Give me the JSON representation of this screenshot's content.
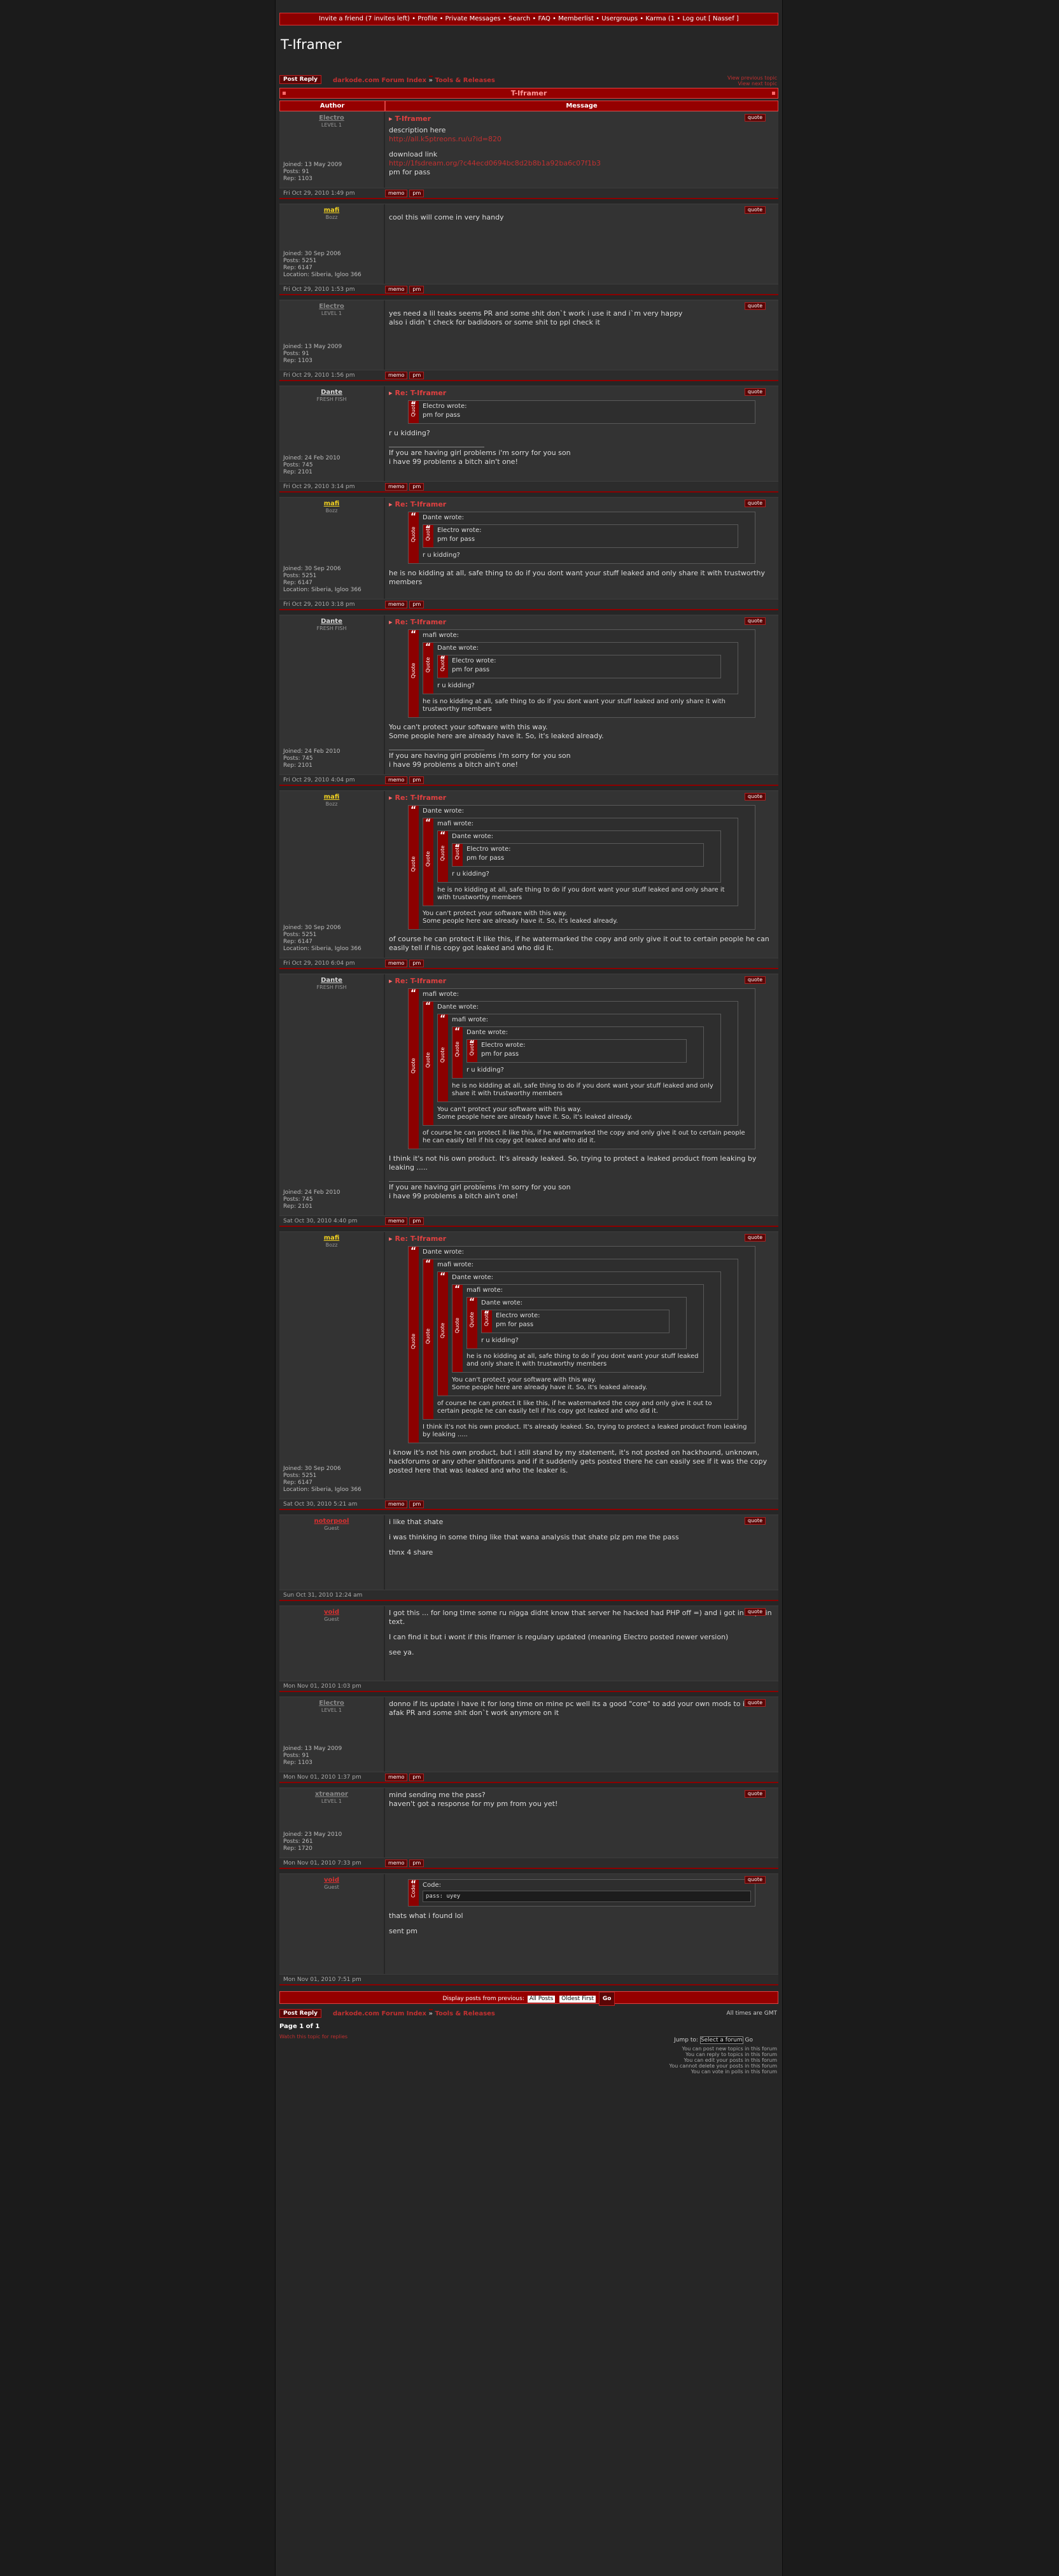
{
  "topbar": "Invite a friend (7 invites left) • Profile • Private Messages • Search • FAQ • Memberlist • Usergroups • Karma (1 • Log out [ Nassef ]",
  "site_title": "T-Iframer",
  "nav": {
    "post_reply": "Post Reply",
    "index": "darkode.com Forum Index",
    "arrow": "»",
    "forum": "Tools & Releases",
    "prev": "View previous topic",
    "next": "View next topic"
  },
  "topic_bar": "T-Iframer",
  "headers": {
    "author": "Author",
    "message": "Message"
  },
  "quote_label": "Quote",
  "quote_btn": "quote",
  "btn_profile": "memo",
  "btn_pm": "pm",
  "posts": [
    {
      "author": "Electro",
      "rank": "LEVEL 1",
      "details": [
        "Joined: 13 May 2009",
        "Posts: 91",
        "Rep: 1103"
      ],
      "subject": "T-Iframer",
      "lines": [
        "description here",
        "http://all.k5ptreons.ru/u?id=820",
        "",
        "download link",
        "http://1fsdream.org/?c44ecd0694bc8d2b8b1a92ba6c07f1b3",
        "pm for pass"
      ],
      "date": "Fri Oct 29, 2010 1:49 pm"
    },
    {
      "author": "mafi",
      "rank": "Bozz",
      "details": [
        "Joined: 30 Sep 2006",
        "Posts: 5251",
        "Rep: 6147",
        "Location: Siberia, Igloo 366"
      ],
      "subject": "",
      "lines": [
        "",
        "cool this will come in very handy"
      ],
      "date": "Fri Oct 29, 2010 1:53 pm"
    },
    {
      "author": "Electro",
      "rank": "LEVEL 1",
      "details": [
        "Joined: 13 May 2009",
        "Posts: 91",
        "Rep: 1103"
      ],
      "subject": "",
      "lines": [
        "",
        "yes need a lil teaks seems PR and some shit don`t work i use it and i`m very happy",
        "also i didn`t check for badidoors or some shit to ppl check it"
      ],
      "date": "Fri Oct 29, 2010 1:56 pm"
    },
    {
      "author": "Dante",
      "rank": "FRESH FISH",
      "details": [
        "Joined: 24 Feb 2010",
        "Posts: 745",
        "Rep: 2101"
      ],
      "subject": "Re: T-Iframer",
      "lines": [
        "r u kidding?"
      ],
      "date": "Fri Oct 29, 2010 3:14 pm"
    },
    {
      "author": "mafi",
      "rank": "Bozz",
      "details": [
        "Joined: 30 Sep 2006",
        "Posts: 5251",
        "Rep: 6147",
        "Location: Siberia, Igloo 366"
      ],
      "subject": "Re: T-Iframer",
      "lines": [
        "he is no kidding at all, safe thing to do if you dont want your stuff leaked and only share it with trustworthy members"
      ],
      "date": "Fri Oct 29, 2010 3:18 pm"
    },
    {
      "author": "Dante",
      "rank": "FRESH FISH",
      "details": [
        "Joined: 24 Feb 2010",
        "Posts: 745",
        "Rep: 2101"
      ],
      "subject": "Re: T-Iframer",
      "lines": [
        "You can't protect your software with this way.",
        "Some people here are already have it. So, it's leaked already."
      ],
      "date": "Fri Oct 29, 2010 4:04 pm"
    },
    {
      "author": "mafi",
      "rank": "Bozz",
      "details": [
        "Joined: 30 Sep 2006",
        "Posts: 5251",
        "Rep: 6147",
        "Location: Siberia, Igloo 366"
      ],
      "subject": "Re: T-Iframer",
      "lines": [
        "of course he can protect it like this, if he watermarked the copy and only give it out to certain people he can easily tell if his copy got leaked and who did it."
      ],
      "date": "Fri Oct 29, 2010 6:04 pm"
    },
    {
      "author": "Dante",
      "rank": "FRESH FISH",
      "details": [
        "Joined: 24 Feb 2010",
        "Posts: 745",
        "Rep: 2101"
      ],
      "subject": "Re: T-Iframer",
      "lines": [
        "I think it's not his own product. It's already leaked. So, trying to protect a leaked product from leaking by leaking ....."
      ],
      "date": "Sat Oct 30, 2010 4:40 pm"
    },
    {
      "author": "mafi",
      "rank": "Bozz",
      "details": [
        "Joined: 30 Sep 2006",
        "Posts: 5251",
        "Rep: 6147",
        "Location: Siberia, Igloo 366"
      ],
      "subject": "Re: T-Iframer",
      "lines": [
        "i know it's not his own product, but i still stand by my statement, it's not posted on hackhound, unknown, hackforums or any other shitforums and if it suddenly gets posted there he can easily see if it was the copy posted here that was leaked and who the leaker is."
      ],
      "date": "Sat Oct 30, 2010 5:21 am"
    },
    {
      "author": "notorpool",
      "rank": "Guest",
      "details": [],
      "subject": "",
      "lines": [
        "i like that shate",
        "",
        "i was thinking in some thing like that wana analysis that shate plz pm me the pass",
        "",
        "thnx 4 share"
      ],
      "date": "Sun Oct 31, 2010 12:24 am"
    },
    {
      "author": "void",
      "rank": "Guest",
      "details": [],
      "subject": "",
      "lines": [
        "I got this ... for long time some ru nigga didnt know that server he hacked had PHP off =) and i got in in plain text.",
        "",
        "I can find it but i wont if this iframer is regulary updated (meaning Electro posted newer version)",
        "",
        "see ya."
      ],
      "date": "Mon Nov 01, 2010 1:03 pm"
    },
    {
      "author": "Electro",
      "rank": "LEVEL 1",
      "details": [
        "Joined: 13 May 2009",
        "Posts: 91",
        "Rep: 1103"
      ],
      "subject": "",
      "lines": [
        "donno if its update i have it for long time on mine pc well its a good \"core\" to add your own mods to it",
        "afak PR and some shit don`t work anymore on it"
      ],
      "date": "Mon Nov 01, 2010 1:37 pm"
    },
    {
      "author": "xtreamor",
      "rank": "LEVEL 1",
      "details": [
        "Joined: 23 May 2010",
        "Posts: 261",
        "Rep: 1720"
      ],
      "subject": "",
      "lines": [
        "mind sending me the pass?",
        "haven't got a response for my pm from you yet!"
      ],
      "date": "Mon Nov 01, 2010 7:33 pm"
    },
    {
      "author": "void",
      "rank": "Guest",
      "details": [],
      "subject": "",
      "lines": [
        "thats what i found lol",
        "",
        "sent pm"
      ],
      "date": "Mon Nov 01, 2010 7:51 pm"
    }
  ],
  "signature": [
    "If you are having girl problems i'm sorry for you son",
    "i have 99 problems a bitch ain't one!"
  ],
  "quotes": {
    "electro": "pm for pass",
    "dante": "r u kidding?",
    "mafi": "he is no kidding at all, safe thing to do if you dont want your stuff leaked and only share it with trustworthy members",
    "dante2a": "You can't protect your software with this way.",
    "dante2b": "Some people here are already have it. So, it's leaked already.",
    "mafi2": "of course he can protect it like this, if he watermarked the copy and only give it out to certain people he can easily tell if his copy got leaked and who did it.",
    "dante3": "I think it's not his own product. It's already leaked. So, trying to protect a leaked product from leaking by leaking .....",
    "w_electro": "Electro wrote:",
    "w_dante": "Dante wrote:",
    "w_mafi": "mafi wrote:",
    "code_label": "Code:",
    "code": "pass: uyey"
  },
  "bottom": {
    "display": "Display posts from previous:",
    "all": "All Posts",
    "order": "Oldest First",
    "go": "Go",
    "timezone": "All times are GMT",
    "page": "Page 1 of 1",
    "watch": "Watch this topic for replies",
    "jump": "Jump to:",
    "select": "Select a forum",
    "perms": [
      "You can post new topics in this forum",
      "You can reply to topics in this forum",
      "You can edit your posts in this forum",
      "You cannot delete your posts in this forum",
      "You can vote in polls in this forum"
    ]
  }
}
